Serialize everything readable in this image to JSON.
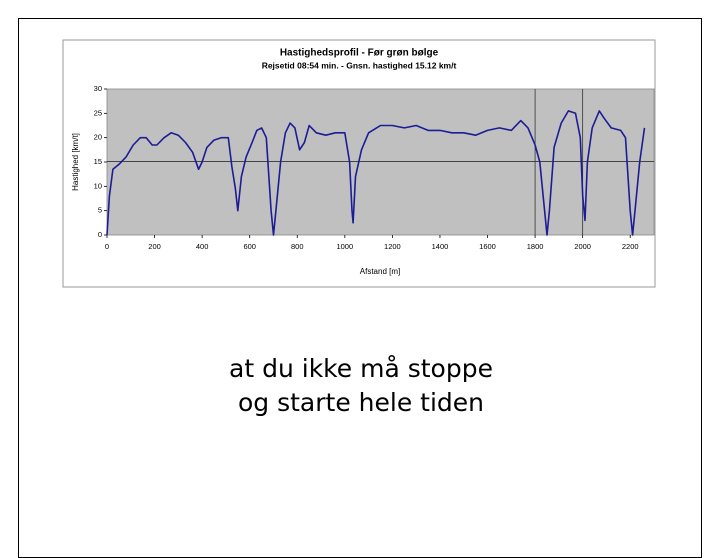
{
  "chart_data": {
    "type": "line",
    "title": "Hastighedsprofil - Før grøn bølge",
    "subtitle": "Rejsetid 08:54 min. - Gnsn. hastighed 15.12 km/t",
    "xlabel": "Afstand [m]",
    "ylabel": "Hastighed [km/t]",
    "x": [
      0,
      10,
      25,
      50,
      80,
      110,
      140,
      165,
      190,
      210,
      240,
      270,
      300,
      330,
      360,
      385,
      400,
      420,
      450,
      480,
      510,
      525,
      540,
      550,
      565,
      585,
      610,
      630,
      650,
      670,
      690,
      700,
      710,
      730,
      750,
      770,
      790,
      810,
      830,
      850,
      880,
      920,
      960,
      1000,
      1020,
      1030,
      1035,
      1045,
      1070,
      1100,
      1150,
      1200,
      1250,
      1300,
      1350,
      1400,
      1450,
      1500,
      1550,
      1600,
      1650,
      1700,
      1740,
      1770,
      1800,
      1820,
      1840,
      1850,
      1860,
      1880,
      1910,
      1940,
      1970,
      1990,
      2000,
      2010,
      2020,
      2040,
      2070,
      2090,
      2120,
      2160,
      2180,
      2200,
      2210,
      2220,
      2240,
      2260
    ],
    "series": [
      {
        "name": "Hastighed",
        "color": "#1c1c96",
        "values": [
          0,
          8,
          13.5,
          14.5,
          16,
          18.5,
          20,
          20,
          18.5,
          18.5,
          20,
          21,
          20.5,
          19,
          17,
          13.5,
          15,
          18,
          19.5,
          20,
          20,
          14,
          9.5,
          5,
          12,
          16,
          19,
          21.5,
          22,
          20,
          5,
          0,
          5,
          15,
          21,
          23,
          22,
          17.5,
          19,
          22.5,
          21,
          20.5,
          21,
          21,
          15,
          5,
          2.5,
          12,
          17.5,
          21,
          22.5,
          22.5,
          22,
          22.5,
          21.5,
          21.5,
          21,
          21,
          20.5,
          21.5,
          22,
          21.5,
          23.5,
          22,
          18.5,
          15,
          5,
          0,
          5,
          18,
          23,
          25.5,
          25,
          20,
          8,
          3,
          15,
          22,
          25.5,
          24,
          22,
          21.5,
          20,
          5,
          0,
          5,
          15,
          22
        ]
      }
    ],
    "xlim": [
      0,
      2300
    ],
    "ylim": [
      0,
      30
    ],
    "xticks": [
      0,
      200,
      400,
      600,
      800,
      1000,
      1200,
      1400,
      1600,
      1800,
      2000,
      2200
    ],
    "yticks": [
      0,
      5,
      10,
      15,
      20,
      25,
      30
    ],
    "hlines": [
      15.12
    ],
    "vlines": [
      1800,
      2000
    ],
    "plot_background": "#c0c0c0"
  },
  "caption": [
    "at du ikke må stoppe",
    "og starte hele tiden"
  ]
}
